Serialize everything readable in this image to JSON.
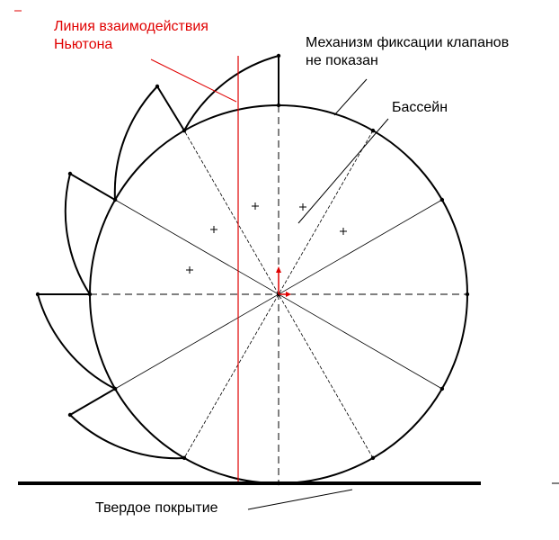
{
  "labels": {
    "newton_line_1": "Линия взаимодействия",
    "newton_line_2": "Ньютона",
    "mechanism_1": "Механизм фиксации клапанов",
    "mechanism_2": "не показан",
    "pool": "Бассейн",
    "ground": "Твердое покрытие"
  },
  "colors": {
    "accent": "#e00000",
    "ink": "#000000"
  }
}
